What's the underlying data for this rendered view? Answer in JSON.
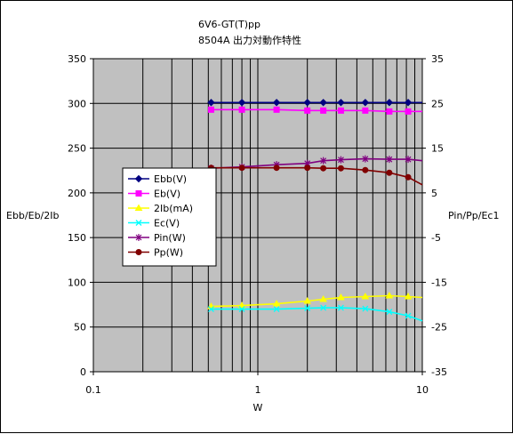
{
  "chart_data": {
    "type": "line",
    "title": "6V6-GT(T)pp",
    "subtitle": "8504A 出力対動作特性",
    "xlabel": "W",
    "ylabel_left": "Ebb/Eb/2Ib",
    "ylabel_right": "Pin/Pp/Ec1",
    "x_scale": "log",
    "xlim": [
      0.1,
      10
    ],
    "x_ticks": [
      "0.1",
      "1",
      "10"
    ],
    "ylim_left": [
      0,
      350
    ],
    "y_ticks_left": [
      "0",
      "50",
      "100",
      "150",
      "200",
      "250",
      "300",
      "350"
    ],
    "ylim_right": [
      -35,
      35
    ],
    "y_ticks_right": [
      "-35",
      "-25",
      "-15",
      "-5",
      "5",
      "15",
      "25",
      "35"
    ],
    "grid": true,
    "plot_background": "#c0c0c0",
    "legend_position": "left",
    "series": [
      {
        "name": "Ebb(V)",
        "axis": "left",
        "color": "#000080",
        "marker": "diamond",
        "points": [
          [
            0.52,
            301
          ],
          [
            0.8,
            301
          ],
          [
            1.3,
            301
          ],
          [
            2.0,
            301
          ],
          [
            2.5,
            301
          ],
          [
            3.2,
            301
          ],
          [
            4.5,
            301
          ],
          [
            6.3,
            301
          ],
          [
            8.2,
            301
          ],
          [
            10,
            301
          ]
        ]
      },
      {
        "name": "Eb(V)",
        "axis": "left",
        "color": "#ff00ff",
        "marker": "square",
        "points": [
          [
            0.52,
            293
          ],
          [
            0.8,
            293
          ],
          [
            1.3,
            293
          ],
          [
            2.0,
            292
          ],
          [
            2.5,
            292
          ],
          [
            3.2,
            292
          ],
          [
            4.5,
            292
          ],
          [
            6.3,
            291
          ],
          [
            8.2,
            291
          ],
          [
            10,
            291
          ]
        ]
      },
      {
        "name": "2Ib(mA)",
        "axis": "left",
        "color": "#ffff00",
        "marker": "triangle",
        "points": [
          [
            0.52,
            73
          ],
          [
            0.8,
            74
          ],
          [
            1.3,
            76
          ],
          [
            2.0,
            79
          ],
          [
            2.5,
            81
          ],
          [
            3.2,
            83
          ],
          [
            4.5,
            84
          ],
          [
            6.3,
            85
          ],
          [
            8.2,
            84
          ],
          [
            10,
            83
          ]
        ]
      },
      {
        "name": "Ec(V)",
        "axis": "right",
        "color": "#00ffff",
        "marker": "x",
        "points": [
          [
            0.52,
            -21
          ],
          [
            0.8,
            -21
          ],
          [
            1.3,
            -21
          ],
          [
            2.0,
            -20.8
          ],
          [
            2.5,
            -20.7
          ],
          [
            3.2,
            -20.7
          ],
          [
            4.5,
            -20.9
          ],
          [
            6.3,
            -21.6
          ],
          [
            8.2,
            -22.5
          ],
          [
            10,
            -23.6
          ]
        ]
      },
      {
        "name": "Pin(W)",
        "axis": "right",
        "color": "#800080",
        "marker": "asterisk",
        "points": [
          [
            0.52,
            10.5
          ],
          [
            0.8,
            10.8
          ],
          [
            1.3,
            11.3
          ],
          [
            2.0,
            11.6
          ],
          [
            2.5,
            12.2
          ],
          [
            3.2,
            12.4
          ],
          [
            4.5,
            12.6
          ],
          [
            6.3,
            12.5
          ],
          [
            8.2,
            12.5
          ],
          [
            10,
            12.2
          ]
        ]
      },
      {
        "name": "Pp(W)",
        "axis": "right",
        "color": "#800000",
        "marker": "circle",
        "points": [
          [
            0.52,
            10.6
          ],
          [
            0.8,
            10.6
          ],
          [
            1.3,
            10.6
          ],
          [
            2.0,
            10.6
          ],
          [
            2.5,
            10.5
          ],
          [
            3.2,
            10.5
          ],
          [
            4.5,
            10.1
          ],
          [
            6.3,
            9.5
          ],
          [
            8.2,
            8.5
          ],
          [
            10,
            6.8
          ]
        ]
      }
    ]
  }
}
